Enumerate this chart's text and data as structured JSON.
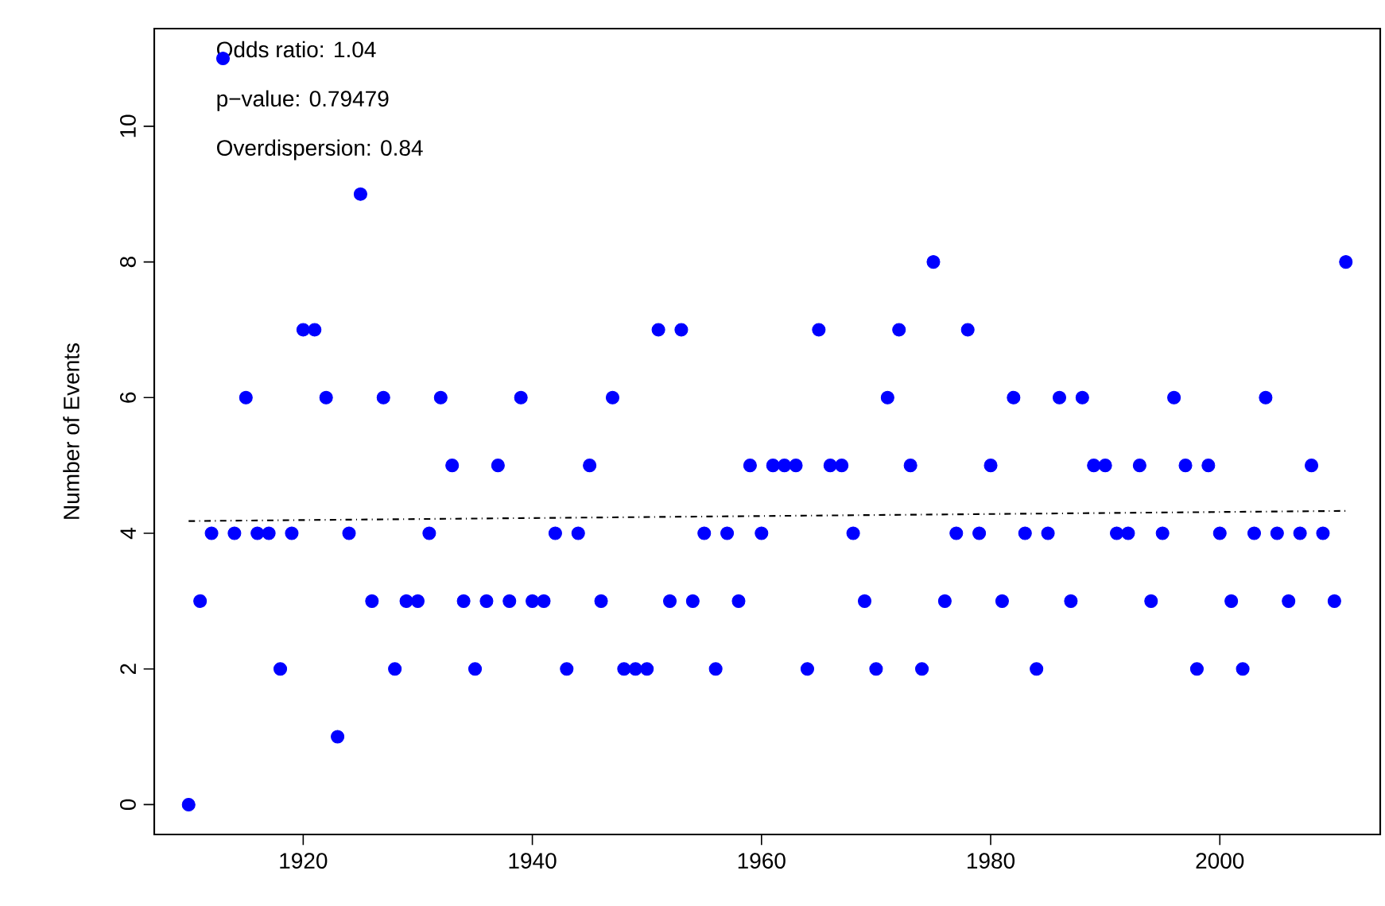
{
  "chart_data": {
    "type": "scatter",
    "ylabel": "Number of Events",
    "annotations": [
      "Odds ratio:  1.04",
      "p−value:     0.79479",
      "Overdispersion:  0.84"
    ],
    "x": [
      1910,
      1911,
      1912,
      1913,
      1914,
      1915,
      1916,
      1917,
      1918,
      1919,
      1920,
      1921,
      1922,
      1923,
      1924,
      1925,
      1926,
      1927,
      1928,
      1929,
      1930,
      1931,
      1932,
      1933,
      1934,
      1935,
      1936,
      1937,
      1938,
      1939,
      1940,
      1941,
      1942,
      1943,
      1944,
      1945,
      1946,
      1947,
      1948,
      1949,
      1950,
      1951,
      1952,
      1953,
      1954,
      1955,
      1956,
      1957,
      1958,
      1959,
      1960,
      1961,
      1962,
      1963,
      1964,
      1965,
      1966,
      1967,
      1968,
      1969,
      1970,
      1971,
      1972,
      1973,
      1974,
      1975,
      1976,
      1977,
      1978,
      1979,
      1980,
      1981,
      1982,
      1983,
      1984,
      1985,
      1986,
      1987,
      1988,
      1989,
      1990,
      1991,
      1992,
      1993,
      1994,
      1995,
      1996,
      1997,
      1998,
      1999,
      2000,
      2001,
      2002,
      2003,
      2004,
      2005,
      2006,
      2007,
      2008,
      2009,
      2010,
      2011
    ],
    "series": [
      {
        "color": "#0000ff",
        "marker": "circle",
        "values": [
          0,
          3,
          4,
          11,
          4,
          6,
          4,
          4,
          2,
          4,
          7,
          7,
          6,
          1,
          4,
          9,
          3,
          6,
          2,
          3,
          3,
          4,
          6,
          5,
          3,
          2,
          3,
          5,
          3,
          6,
          3,
          3,
          4,
          2,
          4,
          5,
          3,
          6,
          2,
          2,
          2,
          7,
          3,
          7,
          3,
          4,
          2,
          4,
          3,
          5,
          4,
          5,
          5,
          5,
          2,
          7,
          5,
          5,
          4,
          3,
          2,
          6,
          7,
          5,
          2,
          8,
          3,
          4,
          7,
          4,
          5,
          3,
          6,
          4,
          2,
          4,
          6,
          3,
          6,
          5,
          5,
          4,
          4,
          5,
          3,
          4,
          6,
          5,
          2,
          5,
          4,
          3,
          2,
          4,
          6,
          4,
          3,
          4,
          5,
          4,
          3,
          8
        ]
      },
      {
        "type": "line",
        "color": "#000000",
        "marker": "none",
        "line_style": "dashdot",
        "x": [
          1910,
          2011
        ],
        "values": [
          4.18,
          4.33
        ]
      }
    ],
    "xlim": [
      1907,
      2014
    ],
    "ylim": [
      -0.44,
      11.44
    ],
    "xticks": [
      1920,
      1940,
      1960,
      1980,
      2000
    ],
    "yticks": [
      0,
      2,
      4,
      6,
      8,
      10
    ],
    "grid": false
  }
}
